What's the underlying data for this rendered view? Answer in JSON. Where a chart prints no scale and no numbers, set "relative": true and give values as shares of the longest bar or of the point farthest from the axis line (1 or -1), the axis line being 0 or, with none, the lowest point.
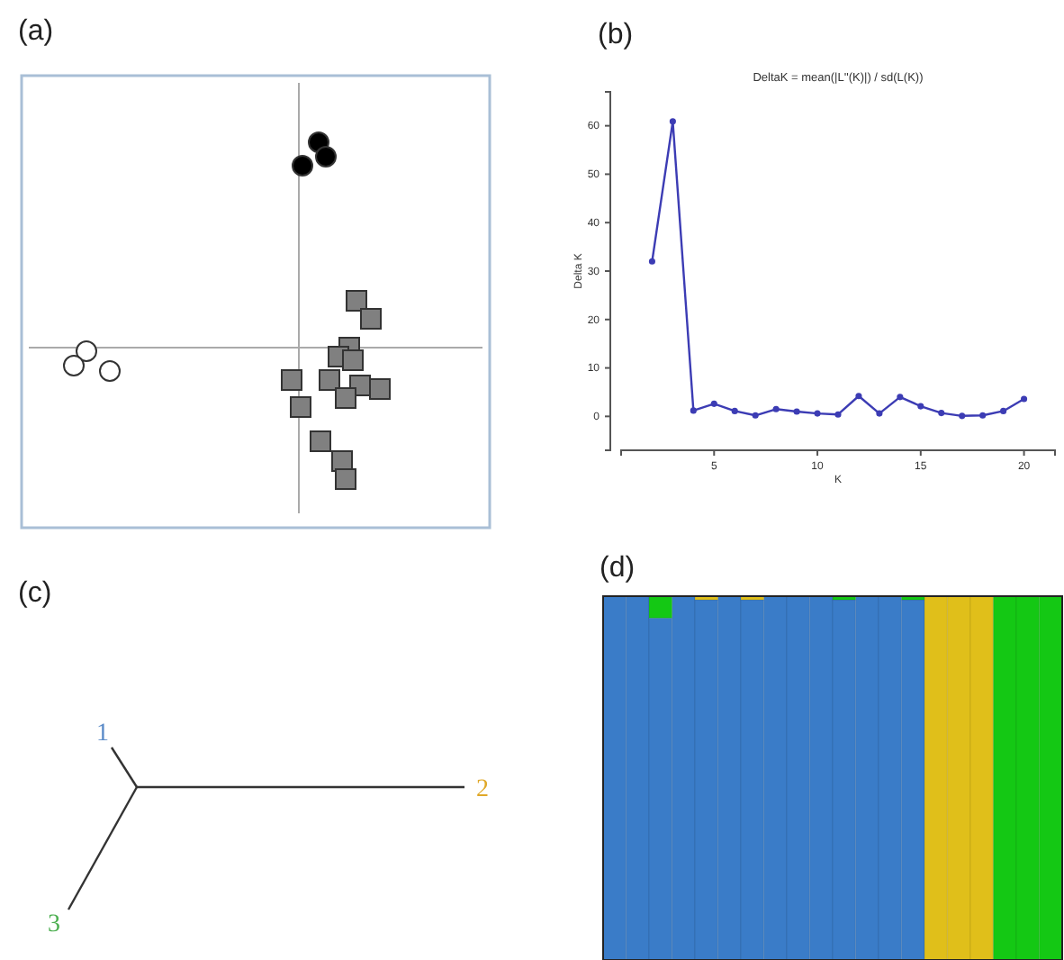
{
  "chart_data": [
    {
      "type": "other",
      "title": "(a)"
    },
    {
      "type": "line",
      "title": "(b)",
      "subtitle": "DeltaK = mean(|L''(K)|) / sd(L(K))",
      "xlabel": "K",
      "ylabel": "Delta K",
      "x": [
        2,
        3,
        4,
        5,
        6,
        7,
        8,
        9,
        10,
        11,
        12,
        13,
        14,
        15,
        16,
        17,
        18,
        19,
        20
      ],
      "series": [
        {
          "color": "#3c3cb4",
          "values": [
            32.0,
            60.9,
            1.2,
            2.6,
            1.1,
            0.2,
            1.5,
            1.0,
            0.6,
            0.4,
            4.2,
            0.6,
            4.0,
            2.1,
            0.7,
            0.1,
            0.2,
            1.1,
            3.6
          ]
        }
      ],
      "xlim": [
        0.5,
        21.5
      ],
      "ylim": [
        -7,
        67
      ],
      "xticks": [
        5,
        10,
        15,
        20
      ],
      "yticks": [
        0,
        10,
        20,
        30,
        40,
        50,
        60
      ],
      "marker": "circle",
      "line_style": "solid"
    },
    {
      "type": "other",
      "title": "(c)",
      "annotations": [
        "1",
        "2",
        "3"
      ]
    },
    {
      "type": "bar",
      "title": "(d)",
      "relative": true,
      "stacked": true,
      "categories": [
        null,
        null,
        null,
        null,
        null,
        null,
        null,
        null,
        null,
        null,
        null,
        null,
        null,
        null,
        null,
        null,
        null,
        null,
        null,
        null
      ],
      "series": [
        {
          "color": "#3a7cc8",
          "values": [
            1,
            1,
            0.94,
            1,
            0.99,
            1,
            0.99,
            1,
            1,
            1,
            0.99,
            1,
            1,
            0.99,
            0,
            0,
            0,
            0,
            0,
            0
          ]
        },
        {
          "color": "#e0bf1a",
          "values": [
            0,
            0,
            0,
            0,
            0.01,
            0,
            0.01,
            0,
            0,
            0,
            0,
            0,
            0,
            0,
            1,
            1,
            1,
            0,
            0,
            0
          ]
        },
        {
          "color": "#14c814",
          "values": [
            0,
            0,
            0.06,
            0,
            0,
            0,
            0,
            0,
            0,
            0,
            0.01,
            0,
            0,
            0.01,
            0,
            0,
            0,
            1,
            1,
            1
          ]
        }
      ]
    }
  ]
}
